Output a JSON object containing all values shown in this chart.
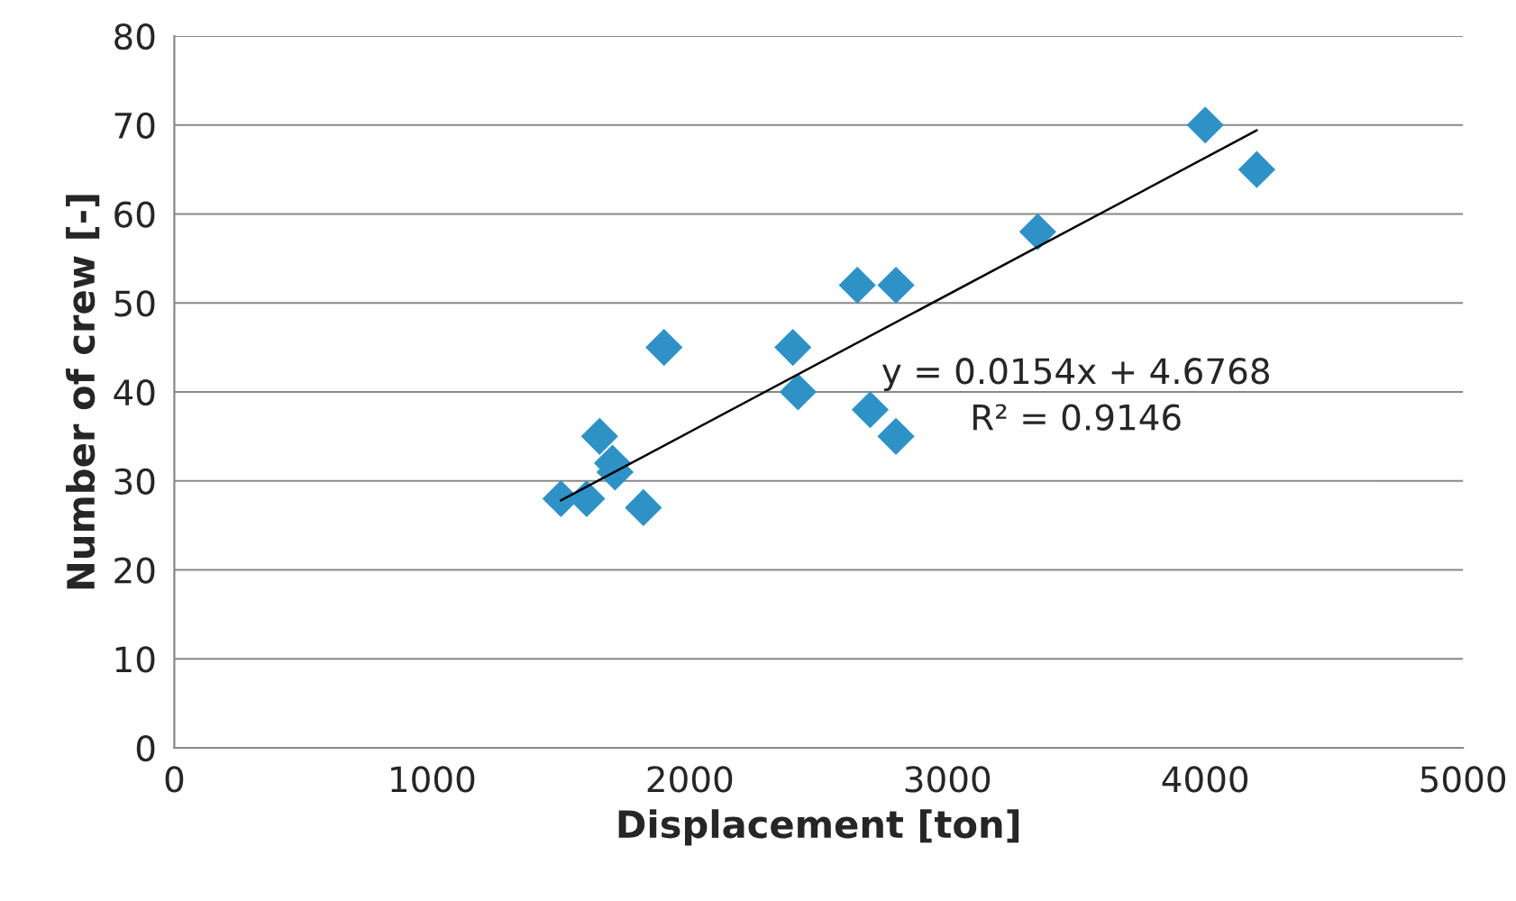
{
  "chart_data": {
    "type": "scatter",
    "xlabel": "Displacement [ton]",
    "ylabel": "Number of crew [-]",
    "series": [
      {
        "color": "#2e92c6",
        "marker": "diamond",
        "x": [
          1500,
          1600,
          1650,
          1700,
          1710,
          1820,
          1900,
          2400,
          2420,
          2650,
          2700,
          2800,
          2800,
          3350,
          4000,
          4200
        ],
        "values": [
          28,
          28,
          35,
          32,
          31,
          27,
          45,
          45,
          40,
          52,
          38,
          35,
          52,
          58,
          70,
          65
        ]
      },
      {
        "type": "line",
        "color": "#000000",
        "x": [
          1500,
          4200
        ],
        "values": [
          27.8,
          69.4
        ]
      }
    ],
    "annotations": [
      "y = 0.0154x + 4.6768",
      "R² = 0.9146"
    ],
    "xlim": [
      0,
      5000
    ],
    "xticks": [
      0,
      1000,
      2000,
      3000,
      4000,
      5000
    ],
    "ylim": [
      0,
      80
    ],
    "yticks": [
      0,
      10,
      20,
      30,
      40,
      50,
      60,
      70,
      80
    ],
    "grid": "y"
  }
}
